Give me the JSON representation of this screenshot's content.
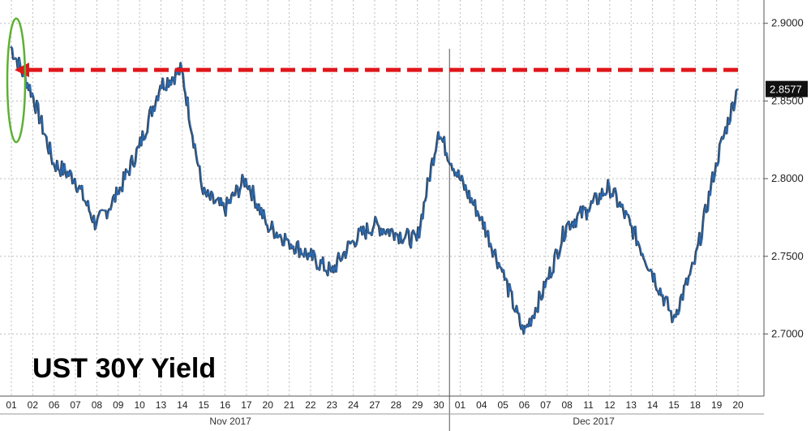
{
  "chart_data": {
    "type": "line",
    "title": "UST 30Y Yield",
    "xlabel": "",
    "ylabel": "",
    "ylim": [
      2.66,
      2.915
    ],
    "y_ticks": [
      "2.9000",
      "2.8500",
      "2.8000",
      "2.7500",
      "2.7000"
    ],
    "y_tick_values": [
      2.9,
      2.85,
      2.8,
      2.75,
      2.7
    ],
    "x_tick_labels": [
      "01",
      "02",
      "06",
      "07",
      "08",
      "09",
      "10",
      "13",
      "14",
      "15",
      "16",
      "17",
      "20",
      "21",
      "22",
      "23",
      "24",
      "27",
      "28",
      "29",
      "30",
      "01",
      "04",
      "05",
      "06",
      "07",
      "08",
      "11",
      "12",
      "13",
      "14",
      "15",
      "18",
      "19",
      "20"
    ],
    "month_labels": [
      "Nov 2017",
      "Dec 2017"
    ],
    "last_value_label": "2.8577",
    "grid": true,
    "colors": {
      "line": "#2a6bb5",
      "line_shadow": "#1a1a1a",
      "annotation_arrow": "#e0161b",
      "annotation_ellipse": "#5db132",
      "last_value_bg": "#111111"
    },
    "annotations": [
      {
        "type": "horizontal-dashed-arrow",
        "y": 2.87,
        "from_x": "20",
        "to_x": "01",
        "color": "#e0161b"
      },
      {
        "type": "ellipse",
        "x": "01",
        "y_range": [
          2.835,
          2.9
        ],
        "color": "#5db132"
      }
    ],
    "series": [
      {
        "x": [
          "01",
          "02",
          "06",
          "07",
          "08",
          "09",
          "10",
          "13",
          "14",
          "15",
          "16",
          "17",
          "20",
          "21",
          "22",
          "23",
          "24",
          "27",
          "28",
          "29",
          "30",
          "01",
          "04",
          "05",
          "06",
          "07",
          "08",
          "11",
          "12",
          "13",
          "14",
          "15",
          "18",
          "19",
          "20"
        ],
        "values": [
          2.885,
          2.855,
          2.81,
          2.8,
          2.77,
          2.79,
          2.82,
          2.86,
          2.87,
          2.79,
          2.78,
          2.8,
          2.77,
          2.76,
          2.75,
          2.74,
          2.76,
          2.77,
          2.765,
          2.76,
          2.83,
          2.8,
          2.775,
          2.74,
          2.7,
          2.73,
          2.77,
          2.78,
          2.795,
          2.77,
          2.74,
          2.71,
          2.745,
          2.81,
          2.8577
        ]
      }
    ]
  }
}
